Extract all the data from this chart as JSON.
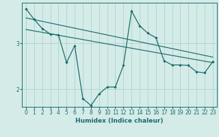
{
  "xlabel": "Humidex (Indice chaleur)",
  "background_color": "#d4ebe8",
  "grid_color": "#afd8d3",
  "line_color": "#1a6b6b",
  "xlim": [
    -0.5,
    23.5
  ],
  "ylim": [
    1.62,
    3.88
  ],
  "yticks": [
    2,
    3
  ],
  "xticks": [
    0,
    1,
    2,
    3,
    4,
    5,
    6,
    7,
    8,
    9,
    10,
    11,
    12,
    13,
    14,
    15,
    16,
    17,
    18,
    19,
    20,
    21,
    22,
    23
  ],
  "series1_x": [
    0,
    1,
    2,
    3,
    4,
    5,
    6,
    7,
    8,
    9,
    10,
    11,
    12,
    13,
    14,
    15,
    16,
    17,
    18,
    19,
    20,
    21,
    22,
    23
  ],
  "series1_y": [
    3.75,
    3.52,
    3.32,
    3.2,
    3.18,
    2.58,
    2.95,
    1.8,
    1.65,
    1.9,
    2.05,
    2.05,
    2.52,
    3.7,
    3.38,
    3.22,
    3.12,
    2.62,
    2.53,
    2.53,
    2.52,
    2.38,
    2.36,
    2.6
  ],
  "series2_x": [
    0,
    23
  ],
  "series2_y": [
    3.55,
    2.7
  ],
  "series3_x": [
    0,
    23
  ],
  "series3_y": [
    3.3,
    2.58
  ]
}
